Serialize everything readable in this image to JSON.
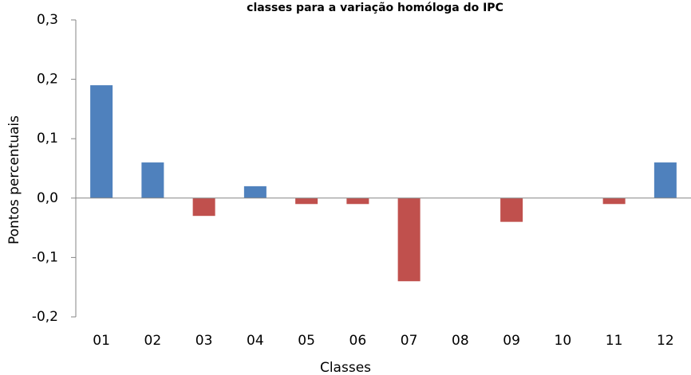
{
  "chart_data": {
    "type": "bar",
    "title": "classes para a variação homóloga do IPC",
    "x_label": "Classes",
    "y_label": "Pontos percentuais",
    "categories": [
      "01",
      "02",
      "03",
      "04",
      "05",
      "06",
      "07",
      "08",
      "09",
      "10",
      "11",
      "12"
    ],
    "values": [
      0.19,
      0.06,
      -0.03,
      0.02,
      -0.01,
      -0.01,
      -0.14,
      0,
      -0.04,
      0,
      -0.01,
      0.06
    ],
    "color": "#4f81bd",
    "negative_color": "#c0504d",
    "ylim": [
      -0.2,
      0.3
    ],
    "yticks": [
      {
        "value": -0.2,
        "label": "-0,2"
      },
      {
        "value": -0.1,
        "label": "-0,1"
      },
      {
        "value": 0,
        "label": "0,0"
      },
      {
        "value": 0.1,
        "label": "0,1"
      },
      {
        "value": 0.2,
        "label": "0,2"
      },
      {
        "value": 0.3,
        "label": "0,3"
      }
    ],
    "grid": false
  }
}
